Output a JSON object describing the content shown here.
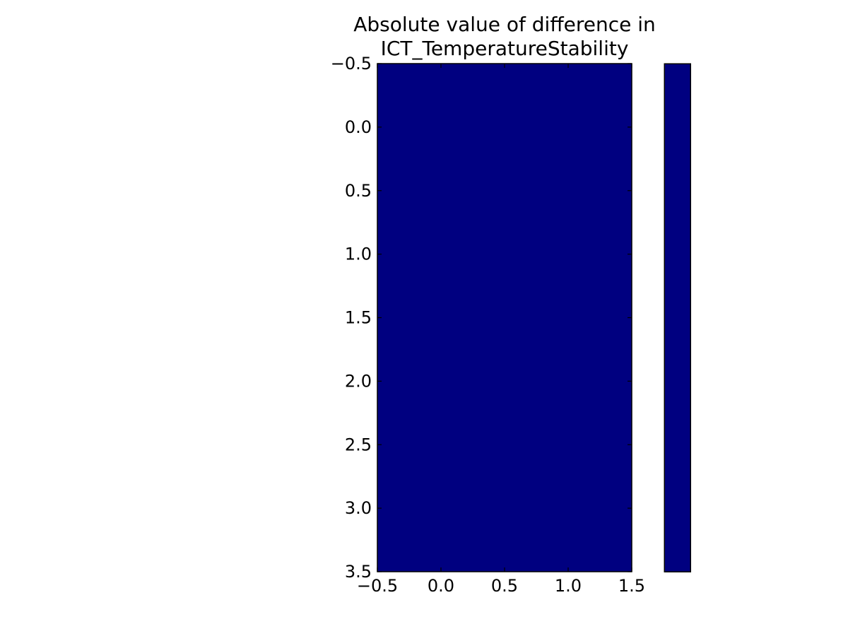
{
  "chart_data": {
    "type": "heatmap",
    "title_lines": [
      "Absolute value of difference in",
      "ICT_TemperatureStability"
    ],
    "xlabel": "",
    "ylabel": "",
    "xlim": [
      -0.5,
      1.5
    ],
    "ylim": [
      3.5,
      -0.5
    ],
    "y_axis_inverted": true,
    "x_ticks": [
      -0.5,
      0.0,
      0.5,
      1.0,
      1.5
    ],
    "x_tick_labels": [
      "−0.5",
      "0.0",
      "0.5",
      "1.0",
      "1.5"
    ],
    "y_ticks": [
      -0.5,
      0.0,
      0.5,
      1.0,
      1.5,
      2.0,
      2.5,
      3.0,
      3.5
    ],
    "y_tick_labels": [
      "−0.5",
      "0.0",
      "0.5",
      "1.0",
      "1.5",
      "2.0",
      "2.5",
      "3.0",
      "3.5"
    ],
    "rows": 4,
    "columns": 2,
    "values": [
      [
        0,
        0
      ],
      [
        0,
        0
      ],
      [
        0,
        0
      ],
      [
        0,
        0
      ]
    ],
    "grid": false,
    "colormap": "jet",
    "cell_color": "#000080",
    "colorbar": {
      "present": true,
      "placement": "right",
      "tick_labels": [],
      "fill_color": "#000080"
    }
  }
}
